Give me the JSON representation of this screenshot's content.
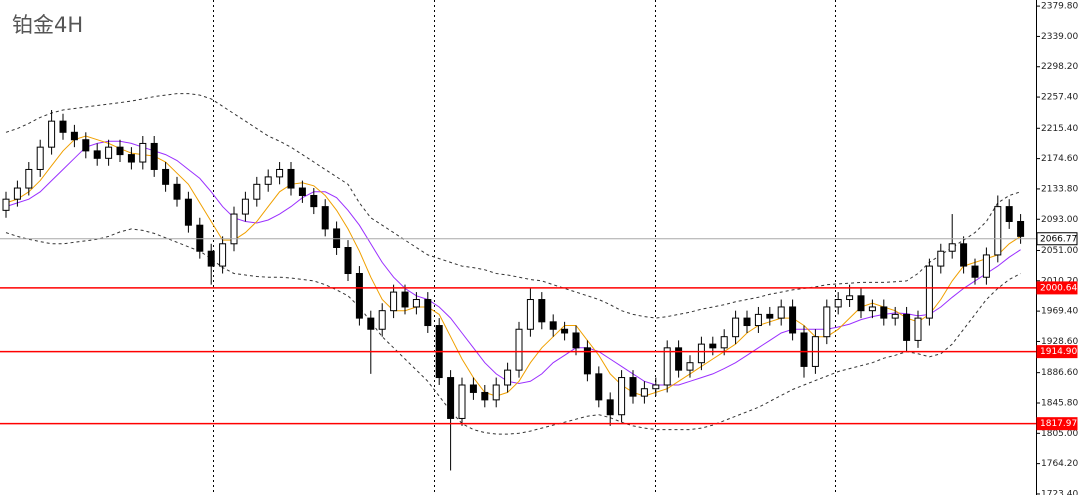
{
  "chart_data": {
    "type": "candlestick",
    "title": "铂金4H",
    "ylim": [
      1722,
      2388
    ],
    "yticks": [
      {
        "value": 2379.8,
        "label": "2379.80"
      },
      {
        "value": 2339,
        "label": "2339.00"
      },
      {
        "value": 2298.2,
        "label": "2298.20"
      },
      {
        "value": 2257.4,
        "label": "2257.40"
      },
      {
        "value": 2215.4,
        "label": "2215.40"
      },
      {
        "value": 2174.6,
        "label": "2174.60"
      },
      {
        "value": 2133.8,
        "label": "2133.80"
      },
      {
        "value": 2093,
        "label": "2093.00"
      },
      {
        "value": 2051,
        "label": "2051.00"
      },
      {
        "value": 2010.2,
        "label": "2010.20"
      },
      {
        "value": 1969.4,
        "label": "1969.40"
      },
      {
        "value": 1928.6,
        "label": "1928.60"
      },
      {
        "value": 1886.6,
        "label": "1886.60"
      },
      {
        "value": 1845.8,
        "label": "1845.80"
      },
      {
        "value": 1805,
        "label": "1805.00"
      },
      {
        "value": 1764.2,
        "label": "1764.20"
      },
      {
        "value": 1723.4,
        "label": "1723.40"
      }
    ],
    "up_color": "#ffffff",
    "down_color": "#000000",
    "open": [
      2105,
      2120,
      2135,
      2160,
      2190,
      2225,
      2210,
      2200,
      2185,
      2175,
      2190,
      2180,
      2170,
      2195,
      2160,
      2140,
      2120,
      2085,
      2050,
      2030,
      2060,
      2100,
      2120,
      2140,
      2150,
      2160,
      2135,
      2125,
      2110,
      2080,
      2055,
      2020,
      1960,
      1945,
      1970,
      1995,
      1975,
      1985,
      1950,
      1880,
      1825,
      1870,
      1860,
      1850,
      1870,
      1890,
      1945,
      1985,
      1955,
      1945,
      1940,
      1920,
      1885,
      1850,
      1830,
      1880,
      1855,
      1865,
      1870,
      1920,
      1890,
      1900,
      1925,
      1920,
      1935,
      1960,
      1950,
      1965,
      1960,
      1975,
      1940,
      1895,
      1935,
      1975,
      1985,
      1990,
      1970,
      1975,
      1960,
      1965,
      1930,
      1960,
      2030,
      2050,
      2060,
      2030,
      2015,
      2045,
      2110,
      2090
    ],
    "high": [
      2130,
      2145,
      2170,
      2200,
      2240,
      2235,
      2220,
      2210,
      2195,
      2200,
      2200,
      2190,
      2205,
      2205,
      2170,
      2150,
      2130,
      2095,
      2060,
      2070,
      2110,
      2130,
      2150,
      2160,
      2170,
      2170,
      2145,
      2135,
      2120,
      2090,
      2065,
      2030,
      1970,
      1980,
      2005,
      2005,
      1995,
      1995,
      1960,
      1890,
      1880,
      1880,
      1870,
      1880,
      1900,
      1955,
      2000,
      1995,
      1965,
      1955,
      1950,
      1930,
      1895,
      1860,
      1890,
      1890,
      1875,
      1880,
      1930,
      1930,
      1910,
      1935,
      1935,
      1945,
      1970,
      1970,
      1975,
      1975,
      1985,
      1985,
      1950,
      1945,
      1985,
      1995,
      2005,
      2000,
      1985,
      1985,
      1975,
      1975,
      1970,
      2040,
      2060,
      2100,
      2070,
      2040,
      2055,
      2125,
      2120,
      2100
    ],
    "low": [
      2095,
      2110,
      2125,
      2150,
      2180,
      2200,
      2190,
      2175,
      2165,
      2165,
      2170,
      2160,
      2160,
      2150,
      2130,
      2110,
      2075,
      2040,
      2005,
      2020,
      2050,
      2090,
      2110,
      2130,
      2140,
      2125,
      2115,
      2100,
      2070,
      2045,
      2010,
      1950,
      1885,
      1935,
      1960,
      1965,
      1965,
      1940,
      1870,
      1755,
      1815,
      1850,
      1840,
      1840,
      1860,
      1880,
      1935,
      1945,
      1935,
      1930,
      1910,
      1875,
      1840,
      1815,
      1820,
      1845,
      1845,
      1855,
      1860,
      1880,
      1880,
      1890,
      1910,
      1910,
      1925,
      1940,
      1940,
      1950,
      1950,
      1930,
      1880,
      1885,
      1925,
      1965,
      1975,
      1960,
      1960,
      1950,
      1950,
      1915,
      1920,
      1950,
      2020,
      2040,
      2020,
      2005,
      2005,
      2035,
      2080,
      2060
    ],
    "close": [
      2120,
      2135,
      2160,
      2190,
      2225,
      2210,
      2200,
      2185,
      2175,
      2190,
      2180,
      2170,
      2195,
      2160,
      2140,
      2120,
      2085,
      2050,
      2030,
      2060,
      2100,
      2120,
      2140,
      2150,
      2160,
      2135,
      2125,
      2110,
      2080,
      2055,
      2020,
      1960,
      1945,
      1970,
      1995,
      1975,
      1985,
      1950,
      1880,
      1825,
      1870,
      1860,
      1850,
      1870,
      1890,
      1945,
      1985,
      1955,
      1945,
      1940,
      1920,
      1885,
      1850,
      1830,
      1880,
      1855,
      1865,
      1870,
      1920,
      1890,
      1900,
      1925,
      1920,
      1935,
      1960,
      1950,
      1965,
      1960,
      1975,
      1940,
      1895,
      1935,
      1975,
      1985,
      1990,
      1970,
      1975,
      1960,
      1965,
      1930,
      1960,
      2030,
      2050,
      2060,
      2030,
      2015,
      2045,
      2110,
      2090,
      2070
    ],
    "overlays": [
      {
        "color": "#333333",
        "dash": true,
        "values": [
          2210,
          2215,
          2222,
          2230,
          2236,
          2240,
          2242,
          2244,
          2246,
          2248,
          2250,
          2252,
          2255,
          2258,
          2260,
          2262,
          2262,
          2260,
          2255,
          2245,
          2235,
          2225,
          2215,
          2205,
          2198,
          2190,
          2180,
          2170,
          2160,
          2150,
          2140,
          2115,
          2095,
          2085,
          2075,
          2065,
          2055,
          2045,
          2040,
          2035,
          2030,
          2028,
          2025,
          2020,
          2018,
          2015,
          2012,
          2010,
          2005,
          2000,
          1995,
          1990,
          1985,
          1978,
          1970,
          1965,
          1962,
          1960,
          1962,
          1965,
          1968,
          1972,
          1975,
          1978,
          1982,
          1985,
          1988,
          1992,
          1995,
          1998,
          2000,
          2002,
          2005,
          2006,
          2007,
          2008,
          2008,
          2008,
          2009,
          2010,
          2020,
          2035,
          2045,
          2055,
          2065,
          2075,
          2090,
          2115,
          2125,
          2130
        ]
      },
      {
        "color": "#333333",
        "dash": true,
        "values": [
          2075,
          2070,
          2066,
          2063,
          2060,
          2060,
          2062,
          2064,
          2066,
          2070,
          2076,
          2080,
          2078,
          2074,
          2068,
          2062,
          2056,
          2050,
          2040,
          2028,
          2020,
          2018,
          2016,
          2015,
          2015,
          2014,
          2012,
          2010,
          2005,
          1998,
          1990,
          1975,
          1955,
          1935,
          1920,
          1905,
          1890,
          1875,
          1855,
          1835,
          1818,
          1810,
          1806,
          1804,
          1804,
          1805,
          1808,
          1812,
          1816,
          1820,
          1824,
          1828,
          1830,
          1826,
          1820,
          1815,
          1812,
          1810,
          1810,
          1810,
          1810,
          1812,
          1816,
          1822,
          1828,
          1834,
          1840,
          1848,
          1856,
          1864,
          1870,
          1876,
          1882,
          1888,
          1892,
          1896,
          1900,
          1906,
          1910,
          1915,
          1912,
          1908,
          1912,
          1925,
          1945,
          1965,
          1985,
          2000,
          2012,
          2020
        ]
      },
      {
        "color": "#9b30ff",
        "dash": false,
        "values": [
          2110,
          2115,
          2120,
          2130,
          2145,
          2160,
          2175,
          2190,
          2195,
          2198,
          2198,
          2195,
          2190,
          2185,
          2180,
          2172,
          2160,
          2148,
          2130,
          2110,
          2095,
          2090,
          2088,
          2092,
          2100,
          2110,
          2122,
          2130,
          2130,
          2122,
          2105,
          2085,
          2060,
          2035,
          2015,
          2000,
          1990,
          1985,
          1975,
          1960,
          1940,
          1920,
          1900,
          1885,
          1875,
          1872,
          1875,
          1885,
          1900,
          1910,
          1920,
          1920,
          1915,
          1905,
          1895,
          1885,
          1875,
          1870,
          1870,
          1870,
          1875,
          1880,
          1885,
          1892,
          1900,
          1910,
          1920,
          1930,
          1940,
          1945,
          1945,
          1945,
          1945,
          1948,
          1952,
          1958,
          1962,
          1965,
          1967,
          1966,
          1963,
          1965,
          1975,
          1988,
          2000,
          2010,
          2020,
          2030,
          2042,
          2052
        ]
      },
      {
        "color": "#f0a000",
        "dash": false,
        "values": [
          2115,
          2120,
          2130,
          2145,
          2165,
          2185,
          2200,
          2205,
          2200,
          2195,
          2188,
          2182,
          2180,
          2178,
          2170,
          2155,
          2140,
          2115,
          2090,
          2065,
          2065,
          2075,
          2090,
          2110,
          2130,
          2140,
          2142,
          2138,
          2125,
          2105,
          2080,
          2050,
          2015,
          1985,
          1970,
          1970,
          1975,
          1975,
          1965,
          1935,
          1905,
          1880,
          1860,
          1855,
          1860,
          1875,
          1900,
          1920,
          1935,
          1950,
          1950,
          1930,
          1910,
          1885,
          1870,
          1860,
          1855,
          1860,
          1865,
          1875,
          1885,
          1895,
          1905,
          1915,
          1925,
          1940,
          1950,
          1955,
          1960,
          1960,
          1950,
          1935,
          1935,
          1945,
          1960,
          1975,
          1980,
          1975,
          1970,
          1960,
          1955,
          1965,
          1985,
          2010,
          2030,
          2035,
          2040,
          2045,
          2060,
          2070
        ]
      }
    ],
    "levels": [
      {
        "value": 2066.77,
        "label": "2066.77",
        "color": "#a8a8a8"
      },
      {
        "value": 2000.64,
        "label": "2000.64",
        "color": "#ff0000"
      },
      {
        "value": 1914.9,
        "label": "1914.90",
        "color": "#ff0000"
      },
      {
        "value": 1817.97,
        "label": "1817.97",
        "color": "#ff0000"
      }
    ]
  }
}
